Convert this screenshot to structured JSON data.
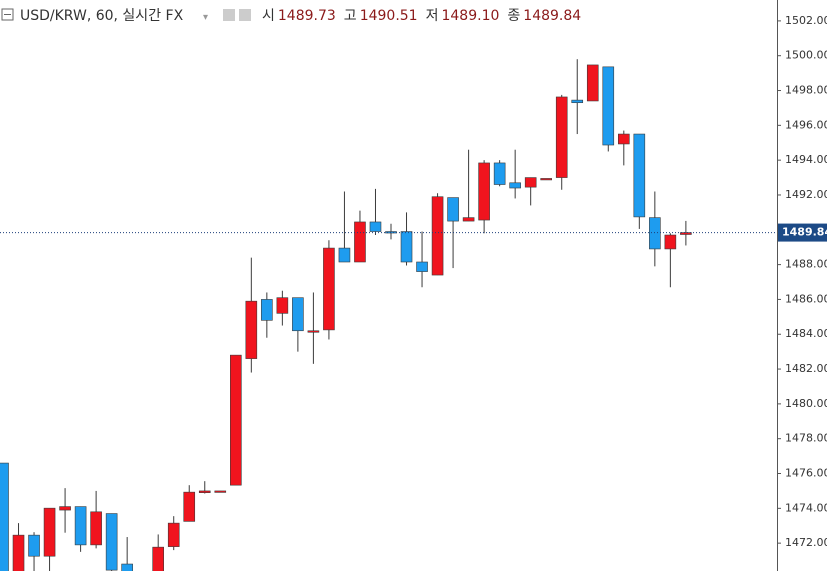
{
  "chart_data": {
    "type": "candlestick",
    "legend": {
      "title": "USD/KRW, 60, 실시간 FX",
      "items": [
        {
          "label": "시",
          "value": "1489.73"
        },
        {
          "label": "고",
          "value": "1490.51"
        },
        {
          "label": "저",
          "value": "1489.10"
        },
        {
          "label": "종",
          "value": "1489.84"
        }
      ]
    },
    "open": [
      1476.6,
      1470.0,
      1472.46,
      1471.25,
      1473.9,
      1474.1,
      1471.9,
      1473.7,
      1470.8,
      1470.0,
      1470.2,
      1471.8,
      1473.25,
      1474.9,
      1474.99,
      1475.33,
      1482.6,
      1486.0,
      1485.2,
      1486.1,
      1484.2,
      1484.25,
      1488.95,
      1488.15,
      1490.45,
      1489.9,
      1489.9,
      1488.15,
      1487.4,
      1491.85,
      1490.5,
      1490.56,
      1493.84,
      1492.7,
      1492.45,
      1492.9,
      1493.0,
      1497.45,
      1497.4,
      1499.36,
      1494.93,
      1495.5,
      1490.7,
      1488.9,
      1489.73
    ],
    "high": [
      1476.6,
      1473.15,
      1472.63,
      1474.01,
      1475.16,
      1474.1,
      1475.0,
      1473.7,
      1472.35,
      1470.3,
      1472.5,
      1473.55,
      1475.33,
      1475.56,
      1475.0,
      1482.8,
      1488.4,
      1486.4,
      1486.5,
      1486.1,
      1486.4,
      1489.4,
      1492.2,
      1491.1,
      1492.35,
      1490.35,
      1491.0,
      1489.9,
      1492.1,
      1491.85,
      1494.6,
      1494.0,
      1494.0,
      1494.6,
      1493.0,
      1492.9,
      1497.75,
      1499.8,
      1499.47,
      1499.36,
      1495.7,
      1495.5,
      1492.2,
      1489.8,
      1490.51
    ],
    "low": [
      1469.8,
      1469.8,
      1470.2,
      1470.2,
      1472.6,
      1471.5,
      1471.7,
      1470.3,
      1470.0,
      1469.5,
      1469.9,
      1471.6,
      1473.25,
      1474.85,
      1474.98,
      1475.33,
      1481.8,
      1483.8,
      1484.5,
      1483.0,
      1482.3,
      1483.7,
      1488.15,
      1488.15,
      1489.7,
      1489.45,
      1487.95,
      1486.7,
      1487.4,
      1487.8,
      1490.5,
      1489.8,
      1492.5,
      1491.8,
      1491.4,
      1492.9,
      1492.3,
      1495.5,
      1497.4,
      1494.5,
      1493.7,
      1490.05,
      1487.9,
      1486.7,
      1489.1
    ],
    "close": [
      1469.9,
      1472.46,
      1471.25,
      1474.01,
      1474.1,
      1471.9,
      1473.8,
      1470.45,
      1470.2,
      1469.7,
      1471.77,
      1473.15,
      1474.93,
      1475.0,
      1475.0,
      1482.8,
      1485.9,
      1484.8,
      1486.1,
      1484.2,
      1484.2,
      1488.95,
      1488.15,
      1490.45,
      1489.9,
      1489.85,
      1488.15,
      1487.6,
      1491.9,
      1490.5,
      1490.7,
      1493.84,
      1492.6,
      1492.4,
      1493.0,
      1492.95,
      1497.63,
      1497.3,
      1499.47,
      1494.87,
      1495.5,
      1490.74,
      1488.9,
      1489.7,
      1489.84
    ],
    "up_color": "#f0141e",
    "down_color": "#1e9cef",
    "last_price": 1489.84,
    "ylim": [
      1470.4,
      1503.2
    ],
    "yticks": [
      {
        "value": 1472,
        "label": "1472.00"
      },
      {
        "value": 1474,
        "label": "1474.00"
      },
      {
        "value": 1476,
        "label": "1476.00"
      },
      {
        "value": 1478,
        "label": "1478.00"
      },
      {
        "value": 1480,
        "label": "1480.00"
      },
      {
        "value": 1482,
        "label": "1482.00"
      },
      {
        "value": 1484,
        "label": "1484.00"
      },
      {
        "value": 1486,
        "label": "1486.00"
      },
      {
        "value": 1488,
        "label": "1488.00"
      },
      {
        "value": 1490,
        "label": "1490.00"
      },
      {
        "value": 1492,
        "label": "1492.00"
      },
      {
        "value": 1494,
        "label": "1494.00"
      },
      {
        "value": 1496,
        "label": "1496.00"
      },
      {
        "value": 1498,
        "label": "1498.00"
      },
      {
        "value": 1500,
        "label": "1500.00"
      },
      {
        "value": 1502,
        "label": "1502.00"
      }
    ]
  }
}
